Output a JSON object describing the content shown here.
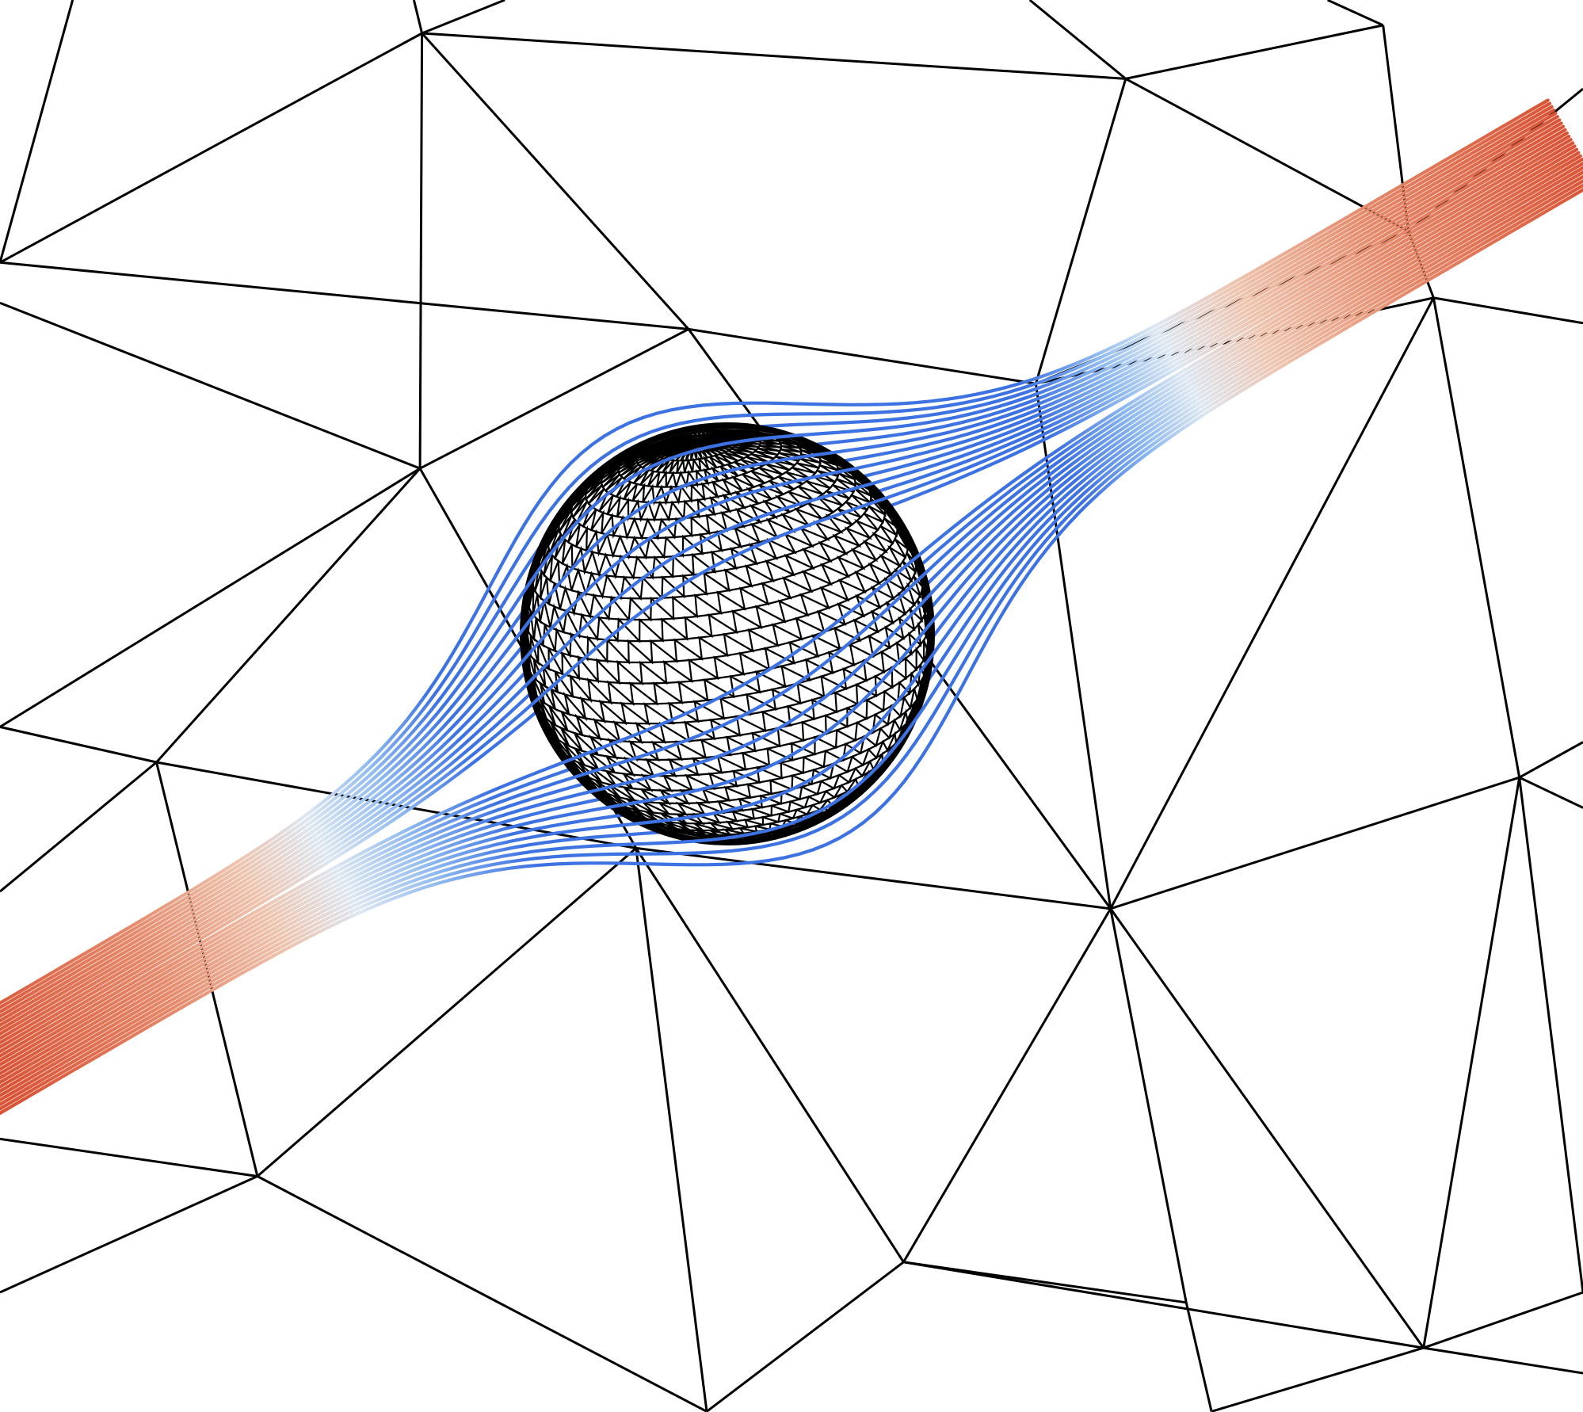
{
  "scene": {
    "type": "mesh-streamline-visualization",
    "background_color": "#ffffff",
    "mesh_edge_color": "#000000",
    "sphere_mesh_color": "#000000",
    "colormap": {
      "name": "coolwarm",
      "low_color": "#3a6fe0",
      "mid_color": "#e8eef4",
      "high_color": "#dc5a3a"
    },
    "streamlines": {
      "count": 26,
      "near_obstacle_color": "#3a6fe0",
      "far_field_color": "#dc5a3a"
    }
  }
}
